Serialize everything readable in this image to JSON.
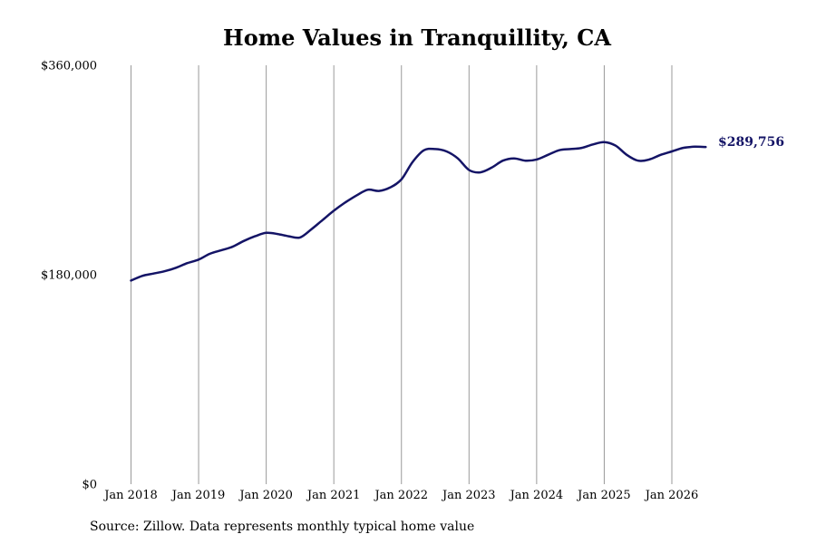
{
  "chart_data": {
    "type": "line",
    "title": "Home Values in Tranquillity, CA",
    "xlabel": "",
    "ylabel": "",
    "ylim": [
      0,
      360000
    ],
    "y_ticks": [
      "$0",
      "$180,000",
      "$360,000"
    ],
    "y_tick_values": [
      0,
      180000,
      360000
    ],
    "x_tick_labels": [
      "Jan 2018",
      "Jan 2019",
      "Jan 2020",
      "Jan 2021",
      "Jan 2022",
      "Jan 2023",
      "Jan 2024",
      "Jan 2025",
      "Jan 2026"
    ],
    "x_tick_values": [
      "2018-01",
      "2019-01",
      "2020-01",
      "2021-01",
      "2022-01",
      "2023-01",
      "2024-01",
      "2025-01",
      "2026-01"
    ],
    "grid": "vertical",
    "line_color": "#141466",
    "end_label": "$289,756",
    "series": [
      {
        "x": [
          "2018-01",
          "2018-03",
          "2018-05",
          "2018-07",
          "2018-09",
          "2018-11",
          "2019-01",
          "2019-03",
          "2019-05",
          "2019-07",
          "2019-09",
          "2019-11",
          "2020-01",
          "2020-03",
          "2020-05",
          "2020-07",
          "2020-09",
          "2020-11",
          "2021-01",
          "2021-03",
          "2021-05",
          "2021-07",
          "2021-09",
          "2021-11",
          "2022-01",
          "2022-03",
          "2022-05",
          "2022-07",
          "2022-09",
          "2022-11",
          "2023-01",
          "2023-03",
          "2023-05",
          "2023-07",
          "2023-09",
          "2023-11",
          "2024-01",
          "2024-03",
          "2024-05",
          "2024-07",
          "2024-09",
          "2024-11",
          "2025-01",
          "2025-03",
          "2025-05",
          "2025-07",
          "2025-09",
          "2025-11",
          "2026-01",
          "2026-03",
          "2026-05",
          "2026-07"
        ],
        "values": [
          175000,
          179000,
          181000,
          183000,
          186000,
          190000,
          193000,
          198000,
          201000,
          204000,
          209000,
          213000,
          216000,
          215000,
          213000,
          212000,
          219000,
          227000,
          235000,
          242000,
          248000,
          253000,
          252000,
          255000,
          262000,
          277000,
          287000,
          288000,
          286000,
          280000,
          270000,
          268000,
          272000,
          278000,
          280000,
          278000,
          279000,
          283000,
          287000,
          288000,
          289000,
          292000,
          294000,
          291000,
          283000,
          278000,
          279000,
          283000,
          286000,
          289000,
          290000,
          289756
        ]
      }
    ]
  },
  "source": "Source: Zillow. Data represents monthly typical home value"
}
